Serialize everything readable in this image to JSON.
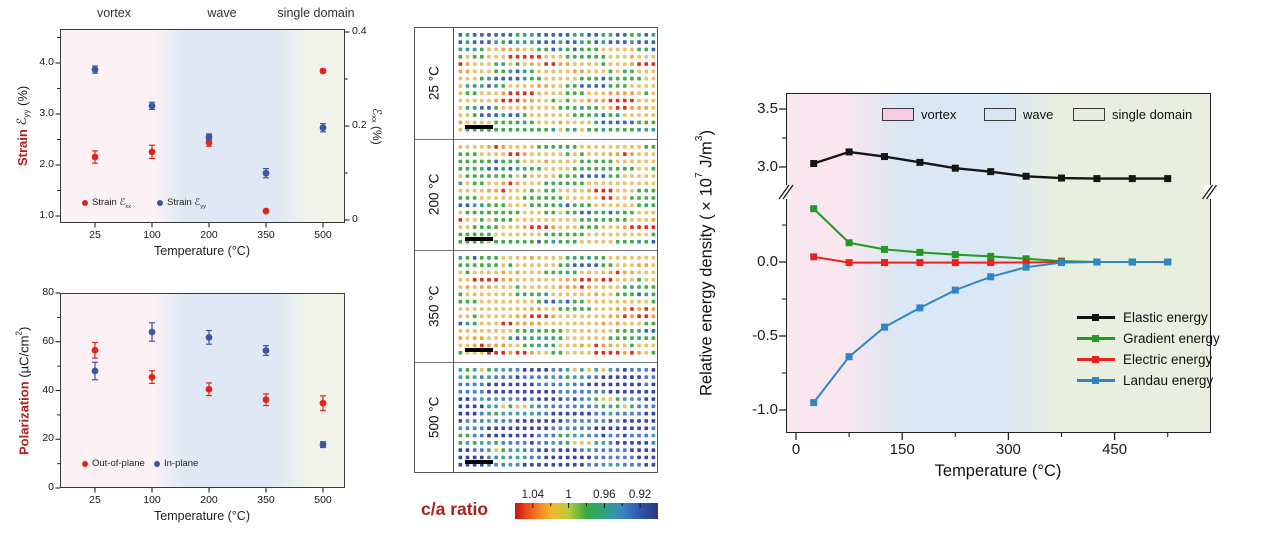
{
  "chart_data": [
    {
      "id": "strain_vs_temperature",
      "type": "scatter",
      "region_labels": [
        "vortex",
        "wave",
        "single domain"
      ],
      "x_categories": [
        "25",
        "100",
        "200",
        "350",
        "500"
      ],
      "xlabel": "Temperature (°C)",
      "ylabel_left": {
        "bold": "Strain",
        "epsilon": "ℰ",
        "sub": "yy",
        "unit": "(%)"
      },
      "ylabel_right": {
        "epsilon": "ℰ",
        "sub": "xx",
        "unit": "(%)"
      },
      "yticks_left": [
        "1.0",
        "2.0",
        "3.0",
        "4.0"
      ],
      "yticks_left_values": [
        1.0,
        2.0,
        3.0,
        4.0
      ],
      "yticks_right": [
        "0",
        "0.2",
        "0.4"
      ],
      "yticks_right_values": [
        0,
        0.2,
        0.4
      ],
      "ylim_left": [
        0.86,
        4.66
      ],
      "ylim_right": [
        -0.006,
        0.406
      ],
      "grid": false,
      "series": [
        {
          "legend": {
            "prefix": "Strain ",
            "epsilon": "ℰ",
            "sub": "xx"
          },
          "axis": "right",
          "color": "#e02519",
          "values": [
            0.134,
            0.145,
            0.165,
            0.019,
            0.317
          ],
          "yerr": [
            0.013,
            0.014,
            0.008,
            0.003,
            0.004
          ]
        },
        {
          "legend": {
            "prefix": "Strain ",
            "epsilon": "ℰ",
            "sub": "yy"
          },
          "axis": "left",
          "color": "#3a57a7",
          "values": [
            3.87,
            3.16,
            2.55,
            1.84,
            2.73
          ],
          "yerr": [
            0.07,
            0.07,
            0.06,
            0.09,
            0.08
          ]
        }
      ],
      "background_regions": {
        "vortex": "#fcf2f6",
        "wave": "#dfe9f5",
        "single_domain": "#f2f4ec"
      }
    },
    {
      "id": "polarization_vs_temperature",
      "type": "scatter",
      "x_categories": [
        "25",
        "100",
        "200",
        "350",
        "500"
      ],
      "xlabel": "Temperature (°C)",
      "ylabel": {
        "bold": "Polarization",
        "unit_prefix": "(µC/cm",
        "unit_sup": "2",
        "unit_suffix": ")"
      },
      "yticks": [
        "0",
        "20",
        "40",
        "60",
        "80"
      ],
      "yticks_values": [
        0,
        20,
        40,
        60,
        80
      ],
      "ylim": [
        0,
        80
      ],
      "grid": false,
      "series": [
        {
          "name": "Out-of-plane",
          "axis": "left",
          "color": "#e02519",
          "values": [
            56.5,
            45.5,
            40.5,
            36.2,
            34.8
          ],
          "yerr": [
            3.2,
            2.6,
            2.6,
            2.4,
            3.0
          ]
        },
        {
          "name": "In-plane",
          "axis": "left",
          "color": "#3a57a7",
          "values": [
            48,
            64,
            61.8,
            56.4,
            17.8
          ],
          "yerr": [
            3.6,
            3.8,
            2.8,
            2.0,
            1.2
          ]
        }
      ],
      "background_regions": {
        "vortex": "#fcf2f6",
        "wave": "#dfe9f5",
        "single_domain": "#f2f4ec"
      }
    },
    {
      "id": "ca_ratio_maps",
      "type": "heatmap",
      "panels": [
        {
          "label": "25 °C",
          "palette": [
            [
              "#dd2d1f",
              0.12
            ],
            [
              "#efa33f",
              0.13
            ],
            [
              "#e9c26a",
              0.34
            ],
            [
              "#44ab4c",
              0.2
            ],
            [
              "#3a9f93",
              0.09
            ],
            [
              "#3c63b2",
              0.12
            ]
          ]
        },
        {
          "label": "200 °C",
          "palette": [
            [
              "#dd2d1f",
              0.02
            ],
            [
              "#efa33f",
              0.08
            ],
            [
              "#e9c26a",
              0.4
            ],
            [
              "#44ab4c",
              0.38
            ],
            [
              "#3a9f93",
              0.07
            ],
            [
              "#3c63b2",
              0.05
            ]
          ]
        },
        {
          "label": "350 °C",
          "palette": [
            [
              "#dd2d1f",
              0.1
            ],
            [
              "#efa33f",
              0.16
            ],
            [
              "#e9c26a",
              0.42
            ],
            [
              "#44ab4c",
              0.24
            ],
            [
              "#3a9f93",
              0.05
            ],
            [
              "#3c63b2",
              0.03
            ]
          ]
        },
        {
          "label": "500 °C",
          "palette": [
            [
              "#e9c26a",
              0.03
            ],
            [
              "#49a94f",
              0.08
            ],
            [
              "#3fa3a0",
              0.16
            ],
            [
              "#4b80c4",
              0.3
            ],
            [
              "#38479f",
              0.43
            ]
          ]
        }
      ],
      "colorbar": {
        "title": "c/a ratio",
        "tick_labels": [
          "1.04",
          "1",
          "0.96",
          "0.92"
        ],
        "tick_values": [
          1.04,
          1.0,
          0.96,
          0.92
        ],
        "minor_tick_values": [
          1.02,
          0.98,
          0.94
        ],
        "range": [
          1.06,
          0.9
        ],
        "gradient": [
          "#cf1010",
          "#f2691d",
          "#f5b62a",
          "#b8cc3a",
          "#35ab3f",
          "#2fa37e",
          "#3a87c0",
          "#3054ad",
          "#28357e"
        ]
      }
    },
    {
      "id": "relative_energy_density",
      "type": "line",
      "x": [
        25,
        75,
        125,
        175,
        225,
        275,
        325,
        375,
        425,
        475,
        525
      ],
      "xticks": [
        "0",
        "150",
        "300",
        "450"
      ],
      "xticks_values": [
        0,
        150,
        300,
        450
      ],
      "xticks_minor_values": [
        75,
        225,
        375,
        525
      ],
      "xlim": [
        -14,
        586
      ],
      "xlabel": "Temperature (°C)",
      "ylabel_parts": {
        "prefix": "Relative energy density (×10",
        "sup1": "7",
        "mid": " J/m",
        "sup2": "3",
        "suffix": ")"
      },
      "axis_break": true,
      "yticks_upper": [
        "3.5",
        "3.0"
      ],
      "yticks_upper_values": [
        3.5,
        3.0
      ],
      "yticks_lower": [
        "0.0",
        "-0.5",
        "-1.0"
      ],
      "yticks_lower_values": [
        0.0,
        -0.5,
        -1.0
      ],
      "ylim_lower": [
        -1.16,
        0.47
      ],
      "ylim_upper": [
        2.78,
        3.64
      ],
      "region_legend": [
        {
          "label": "vortex",
          "color": "#f7cbe1"
        },
        {
          "label": "wave",
          "color": "#d9e6f4"
        },
        {
          "label": "single domain",
          "color": "#e6eedb"
        }
      ],
      "background_regions": {
        "vortex": "#fae6ef",
        "wave": "#dae7f4",
        "single_domain": "#e9efde"
      },
      "series": [
        {
          "name": "Elastic energy",
          "color": "#151515",
          "values": [
            3.03,
            3.13,
            3.09,
            3.04,
            2.99,
            2.96,
            2.92,
            2.905,
            2.9,
            2.9,
            2.9
          ]
        },
        {
          "name": "Gradient energy",
          "color": "#219a21",
          "values": [
            0.36,
            0.13,
            0.085,
            0.065,
            0.05,
            0.038,
            0.022,
            0.006,
            0.0,
            0.0,
            0.0
          ]
        },
        {
          "name": "Electric energy",
          "color": "#e8231b",
          "values": [
            0.035,
            -0.004,
            -0.004,
            -0.004,
            -0.004,
            -0.004,
            -0.003,
            0.0,
            0.0,
            0.0,
            0.0
          ]
        },
        {
          "name": "Landau energy",
          "color": "#2e86c6",
          "values": [
            -0.95,
            -0.64,
            -0.44,
            -0.31,
            -0.19,
            -0.1,
            -0.035,
            -0.004,
            0.0,
            0.0,
            0.0
          ]
        }
      ]
    }
  ]
}
